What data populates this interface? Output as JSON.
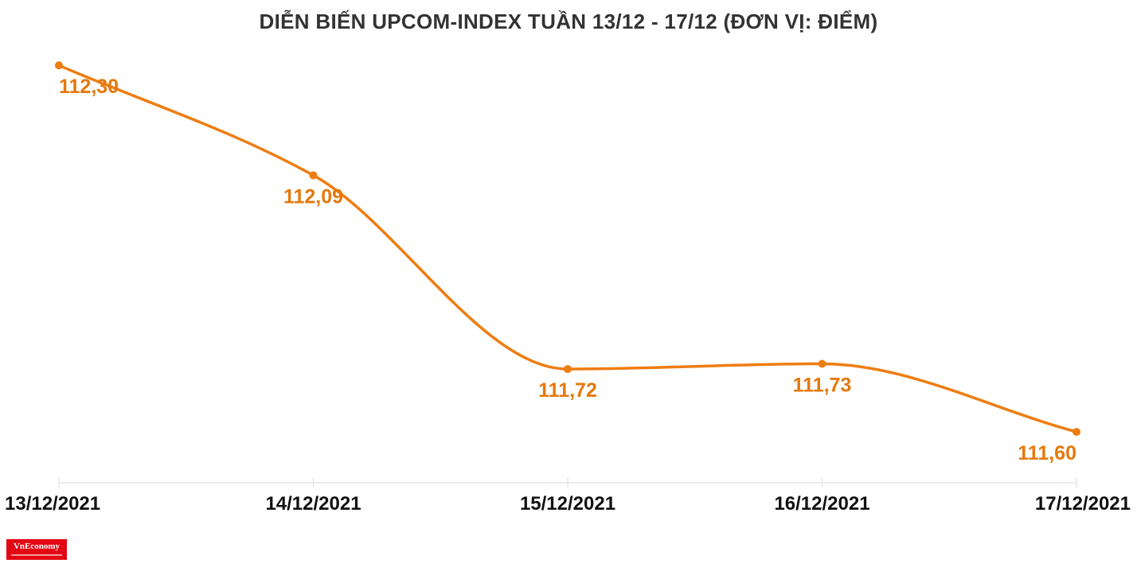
{
  "chart_data": {
    "type": "line",
    "title": "DIỄN BIẾN UPCOM-INDEX TUẦN 13/12 - 17/12 (ĐƠN VỊ: ĐIỂM)",
    "categories": [
      "13/12/2021",
      "14/12/2021",
      "15/12/2021",
      "16/12/2021",
      "17/12/2021"
    ],
    "series": [
      {
        "values": [
          112.3,
          112.09,
          111.72,
          111.73,
          111.6
        ],
        "labels": [
          "112,30",
          "112,09",
          "111,72",
          "111,73",
          "111,60"
        ]
      }
    ],
    "ylim": [
      111.55,
      112.32
    ],
    "grid": false,
    "line_color": "#ee7d11",
    "label_color": "#e5780c",
    "axis_color": "#e6e6e6"
  },
  "logo": {
    "text": "VnEconomy"
  }
}
